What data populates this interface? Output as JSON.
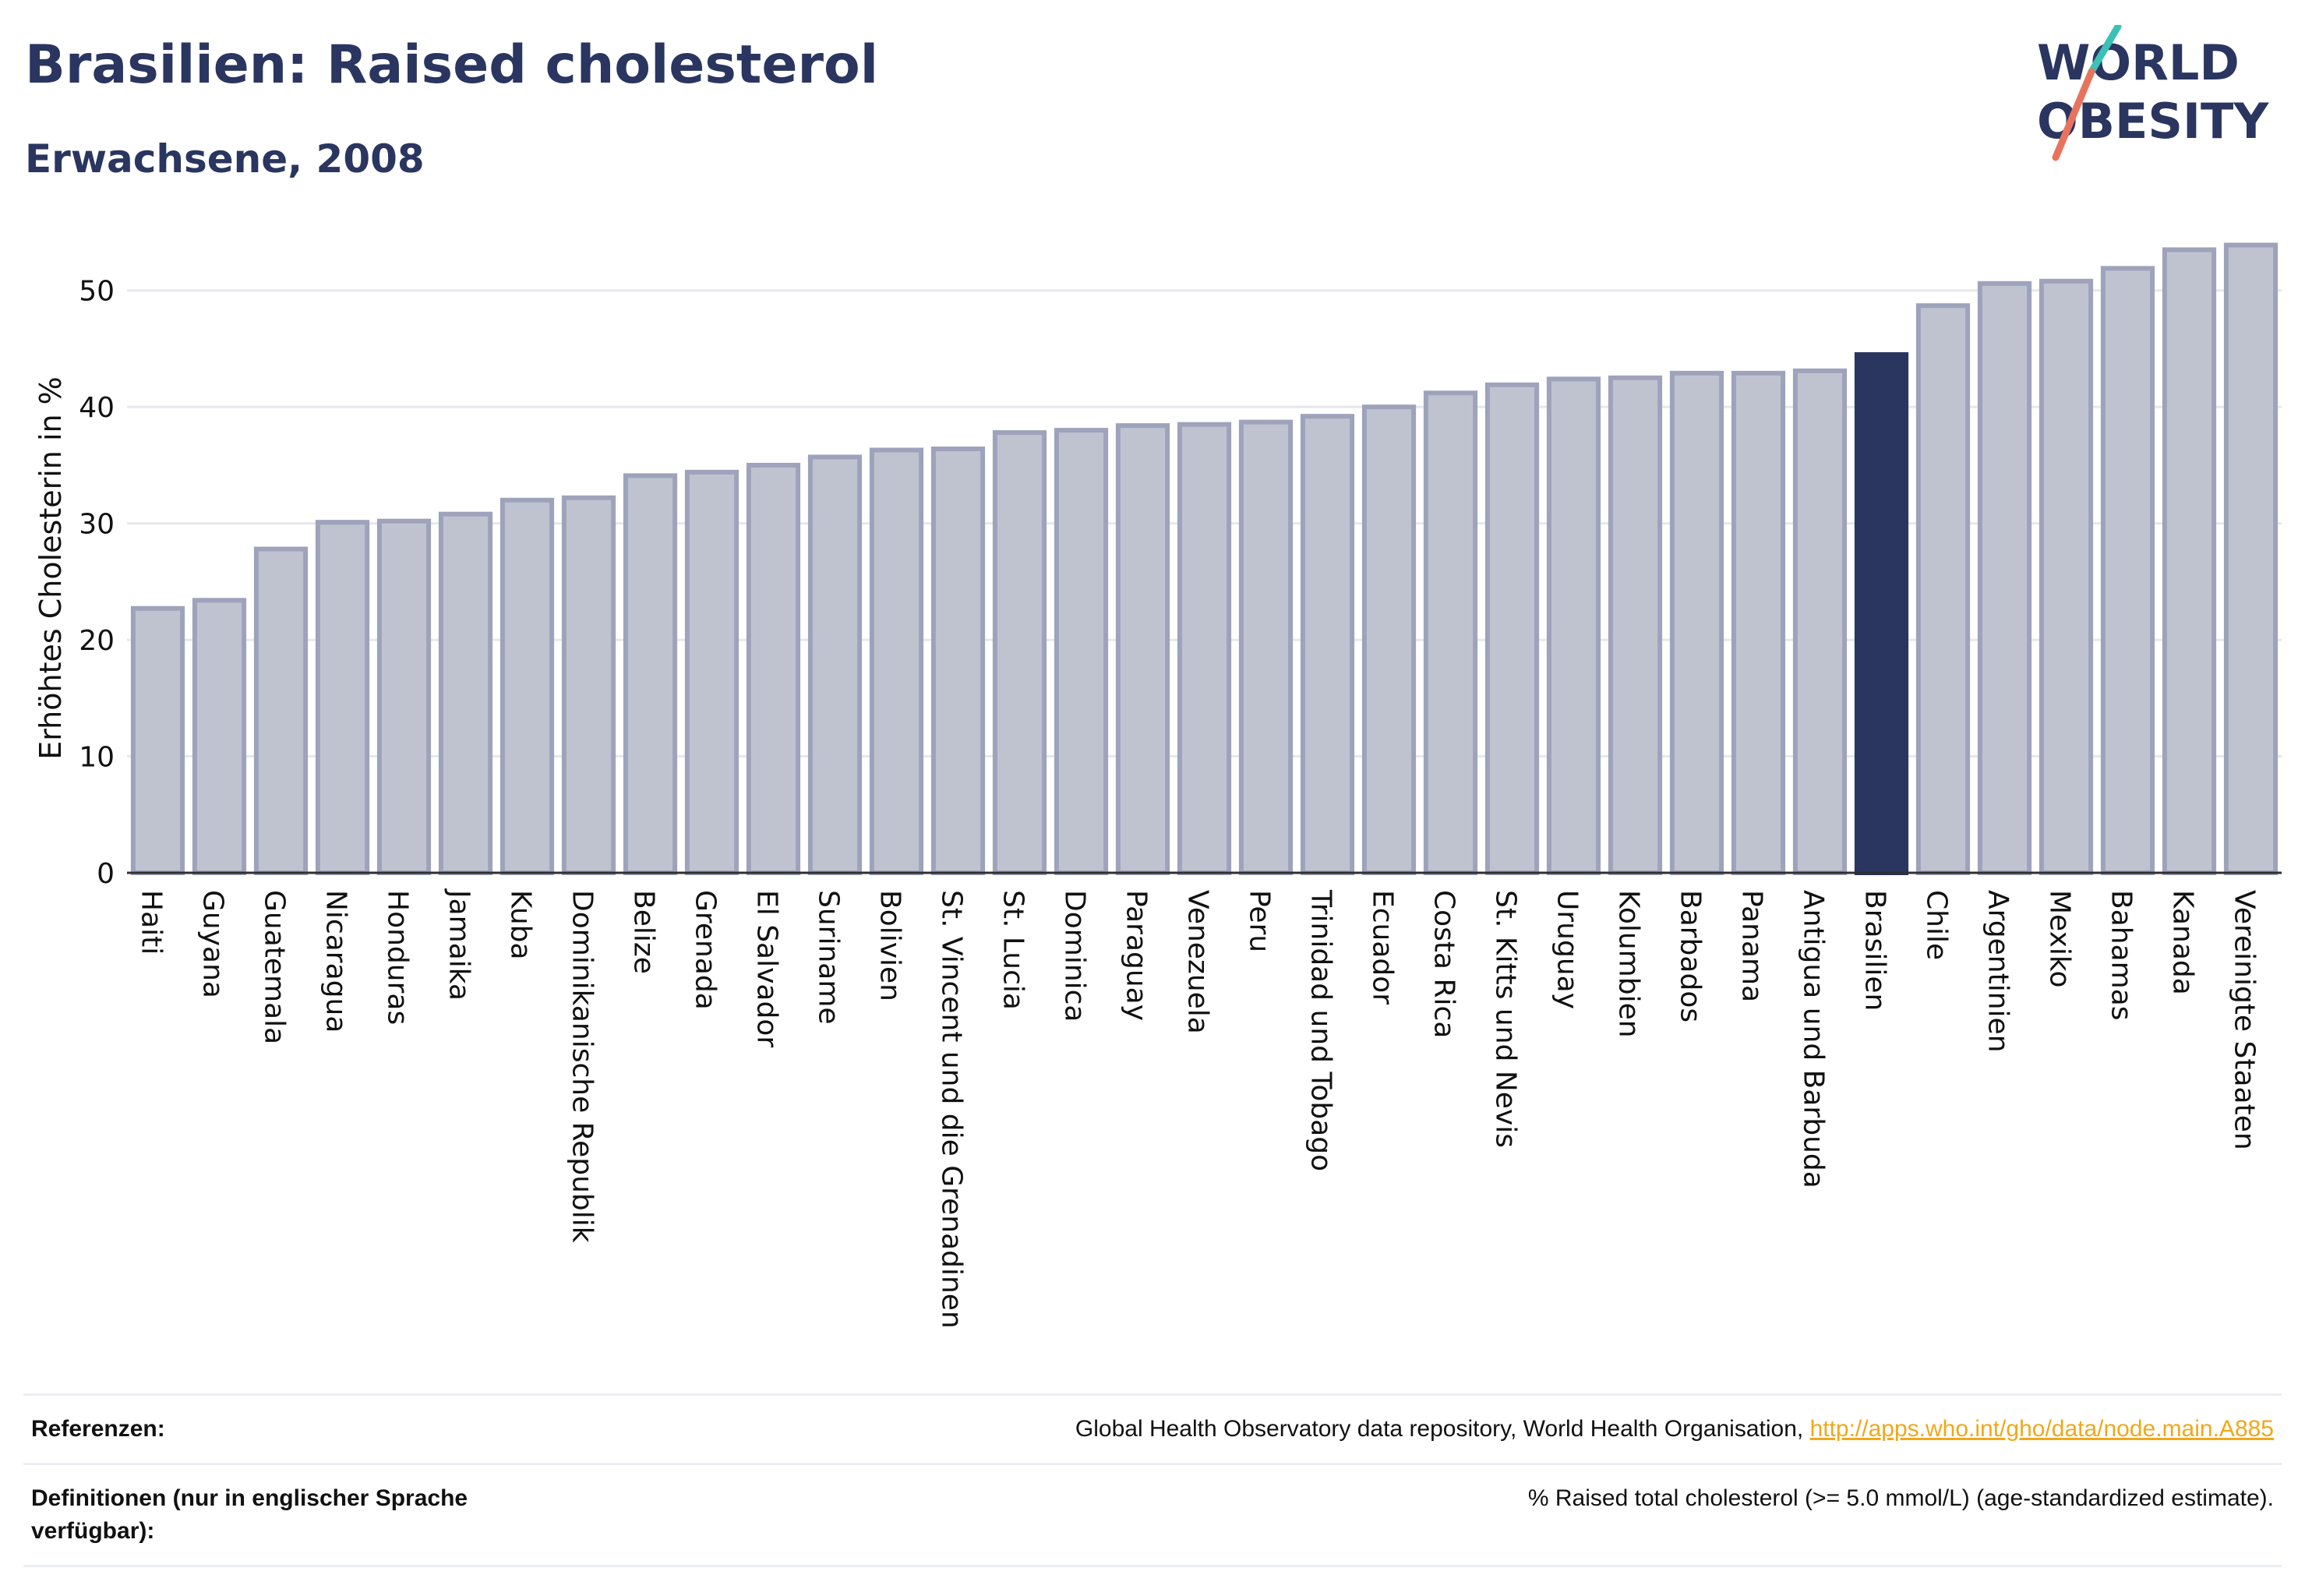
{
  "header": {
    "title": "Brasilien: Raised cholesterol",
    "subtitle": "Erwachsene, 2008"
  },
  "logo": {
    "line1": "WORLD",
    "line2": "OBESITY"
  },
  "colors": {
    "bar": "#bfc3d0",
    "bar_stroke": "#9ea3bb",
    "highlight": "#2a3560",
    "text": "#2a3560",
    "link": "#f0a81a"
  },
  "chart_data": {
    "type": "bar",
    "ylabel": "Erhöhtes Cholesterin in %",
    "xlabel": "",
    "ylim": [
      0,
      55
    ],
    "yticks": [
      0,
      10,
      20,
      30,
      40,
      50
    ],
    "grid": true,
    "highlight": "Brasilien",
    "categories": [
      "Haiti",
      "Guyana",
      "Guatemala",
      "Nicaragua",
      "Honduras",
      "Jamaika",
      "Kuba",
      "Dominikanische Republik",
      "Belize",
      "Grenada",
      "El Salvador",
      "Suriname",
      "Bolivien",
      "St. Vincent und die Grenadinen",
      "St. Lucia",
      "Dominica",
      "Paraguay",
      "Venezuela",
      "Peru",
      "Trinidad und Tobago",
      "Ecuador",
      "Costa Rica",
      "St. Kitts und Nevis",
      "Uruguay",
      "Kolumbien",
      "Barbados",
      "Panama",
      "Antigua und Barbuda",
      "Brasilien",
      "Chile",
      "Argentinien",
      "Mexiko",
      "Bahamas",
      "Kanada",
      "Vereinigte Staaten"
    ],
    "values": [
      22.7,
      23.4,
      27.8,
      30.1,
      30.2,
      30.8,
      32.0,
      32.2,
      34.1,
      34.4,
      35.0,
      35.7,
      36.3,
      36.4,
      37.8,
      38.0,
      38.4,
      38.5,
      38.7,
      39.2,
      40.0,
      41.2,
      41.9,
      42.4,
      42.5,
      42.9,
      42.9,
      43.1,
      44.5,
      48.7,
      50.6,
      50.8,
      51.9,
      53.5,
      53.9
    ]
  },
  "references": [
    {
      "label": "Referenzen:",
      "text": "Global Health Observatory data repository, World Health Organisation, ",
      "link": "http://apps.who.int/gho/data/node.main.A885"
    },
    {
      "label": "Definitionen (nur in englischer Sprache verfügbar):",
      "text": "% Raised total cholesterol (>= 5.0 mmol/L) (age-standardized estimate).",
      "link": ""
    }
  ]
}
